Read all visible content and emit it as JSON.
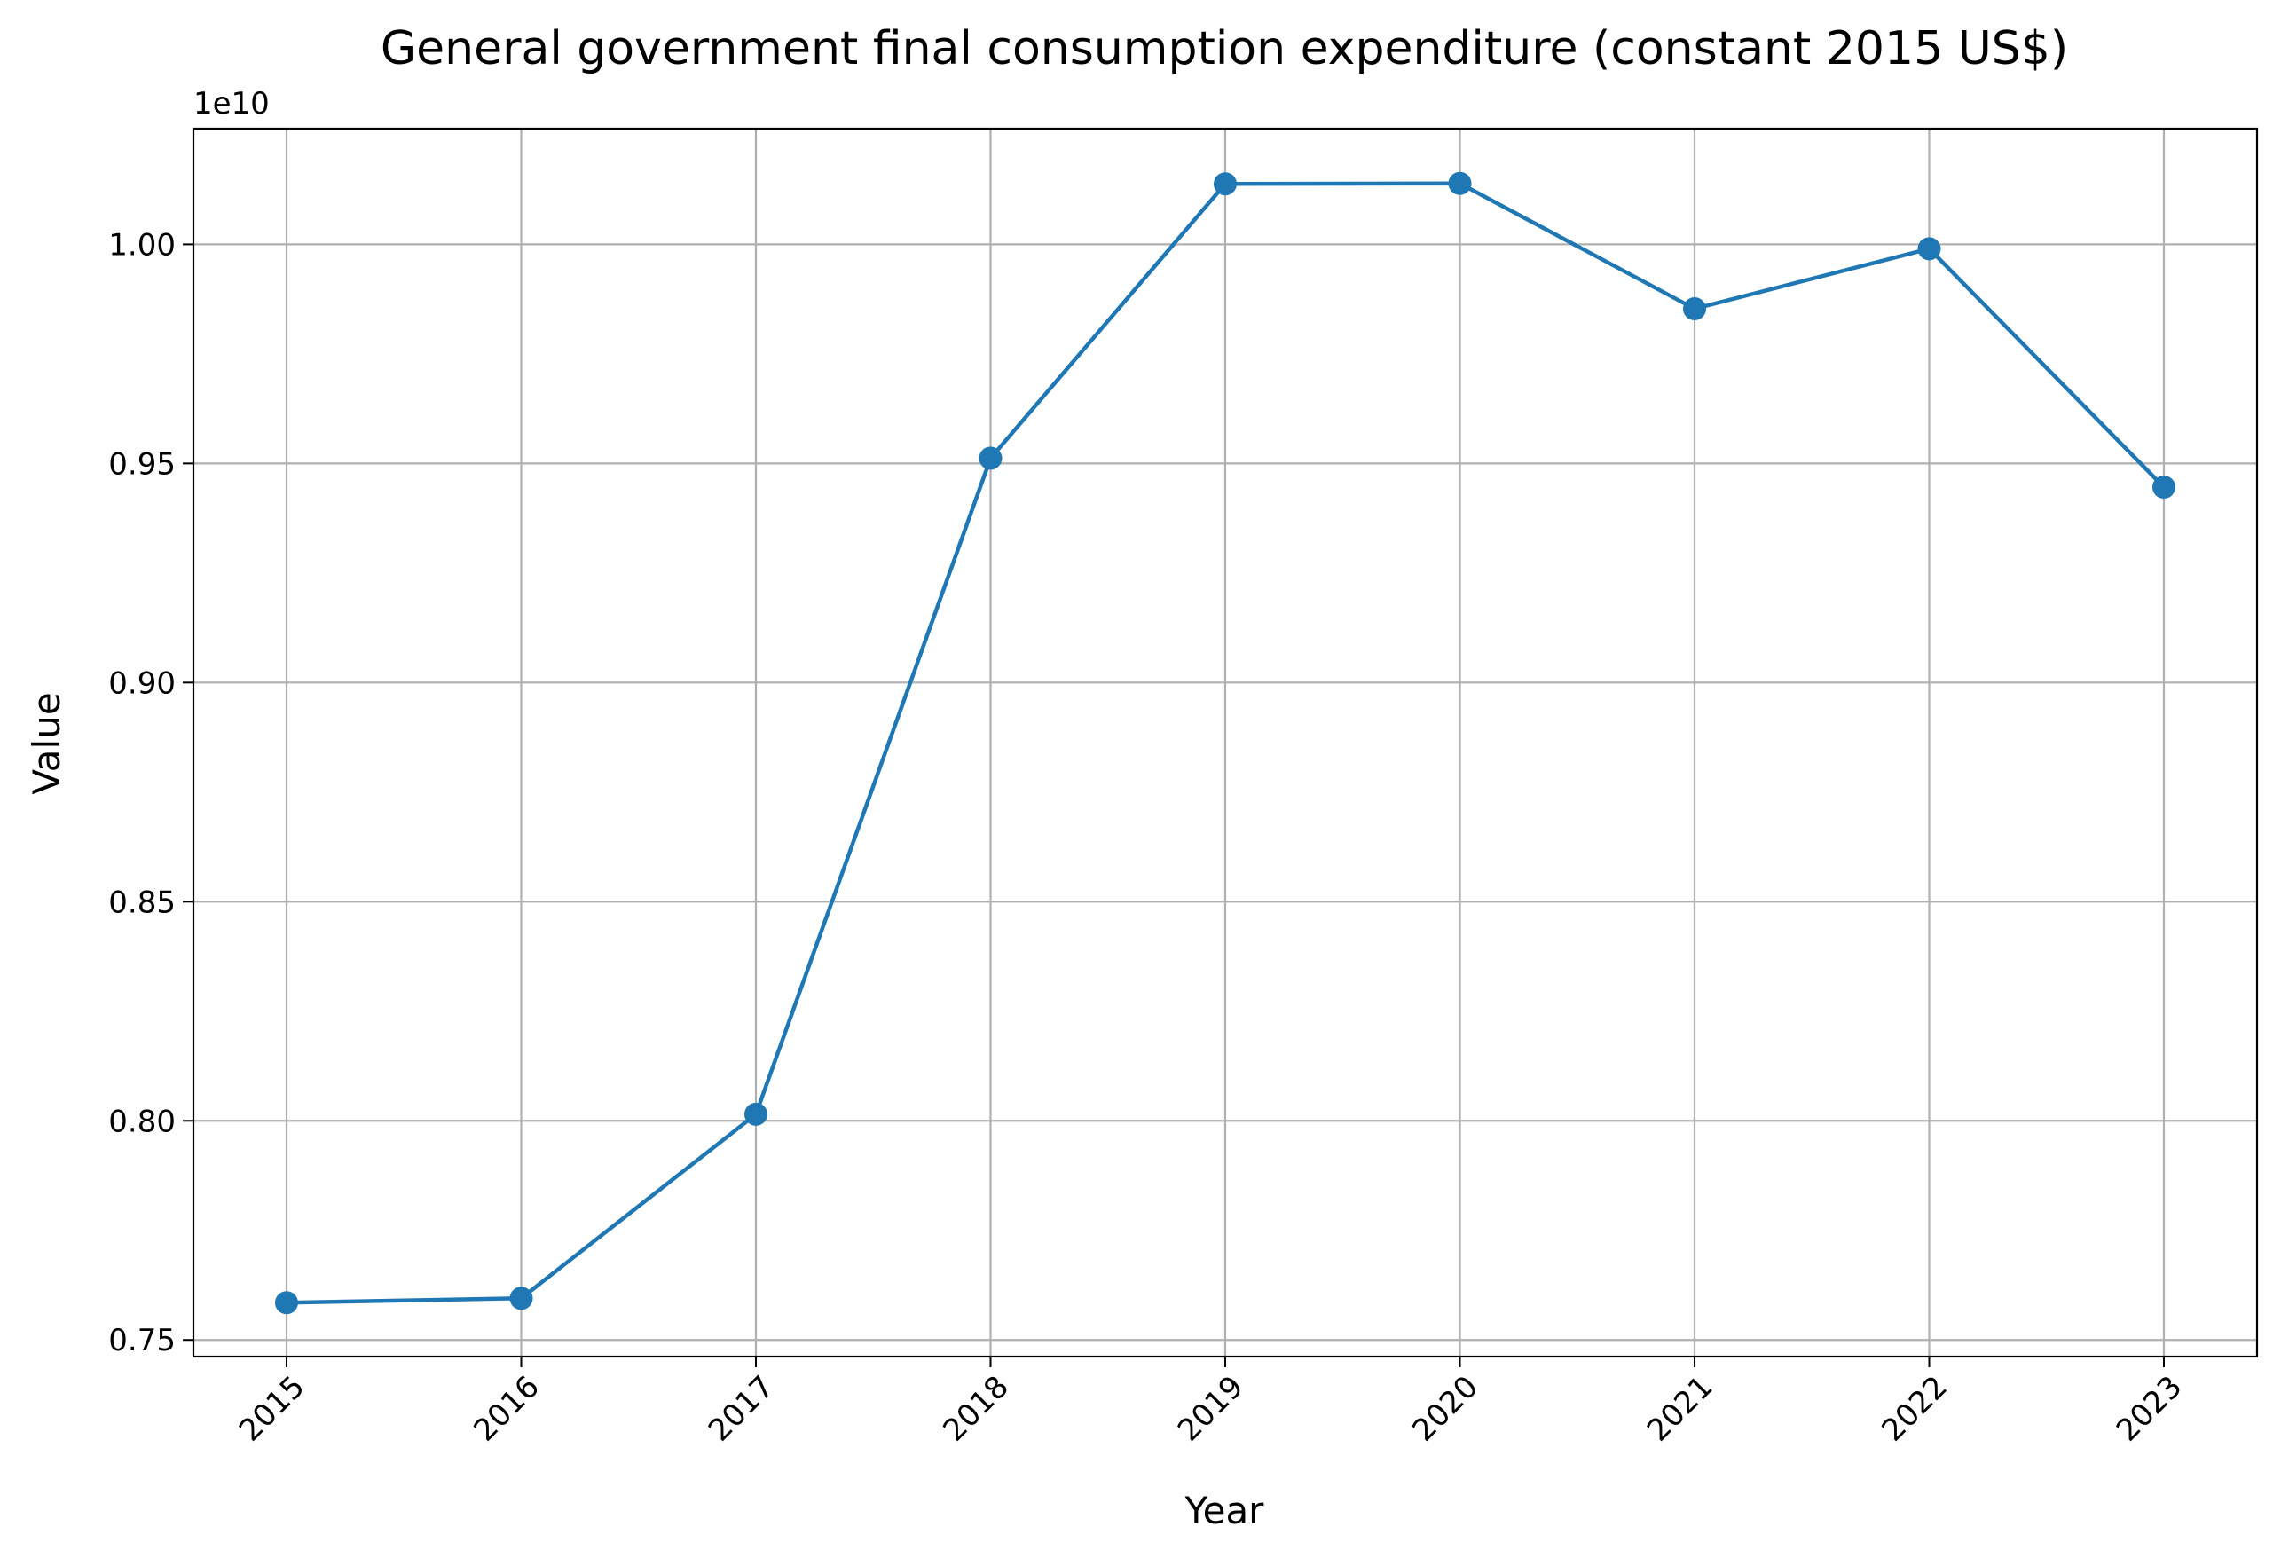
{
  "chart_data": {
    "type": "line",
    "title": "General government final consumption expenditure (constant 2015 US$)",
    "xlabel": "Year",
    "ylabel": "Value",
    "y_offset_label": "1e10",
    "x": [
      "2015",
      "2016",
      "2017",
      "2018",
      "2019",
      "2020",
      "2021",
      "2022",
      "2023"
    ],
    "series": [
      {
        "values": [
          7585000000.0,
          7595000000.0,
          8015000000.0,
          9512000000.0,
          10138000000.0,
          10139000000.0,
          9853000000.0,
          9990000000.0,
          9446000000.0
        ],
        "color": "#1f77b4"
      }
    ],
    "ylim": [
      7462000000.0,
      10264000000.0
    ],
    "y_ticks": [
      {
        "value": 7500000000.0,
        "label": "0.75"
      },
      {
        "value": 8000000000.0,
        "label": "0.80"
      },
      {
        "value": 8500000000.0,
        "label": "0.85"
      },
      {
        "value": 9000000000.0,
        "label": "0.90"
      },
      {
        "value": 9500000000.0,
        "label": "0.95"
      },
      {
        "value": 10000000000.0,
        "label": "1.00"
      }
    ],
    "grid": true,
    "marker": "circle"
  }
}
